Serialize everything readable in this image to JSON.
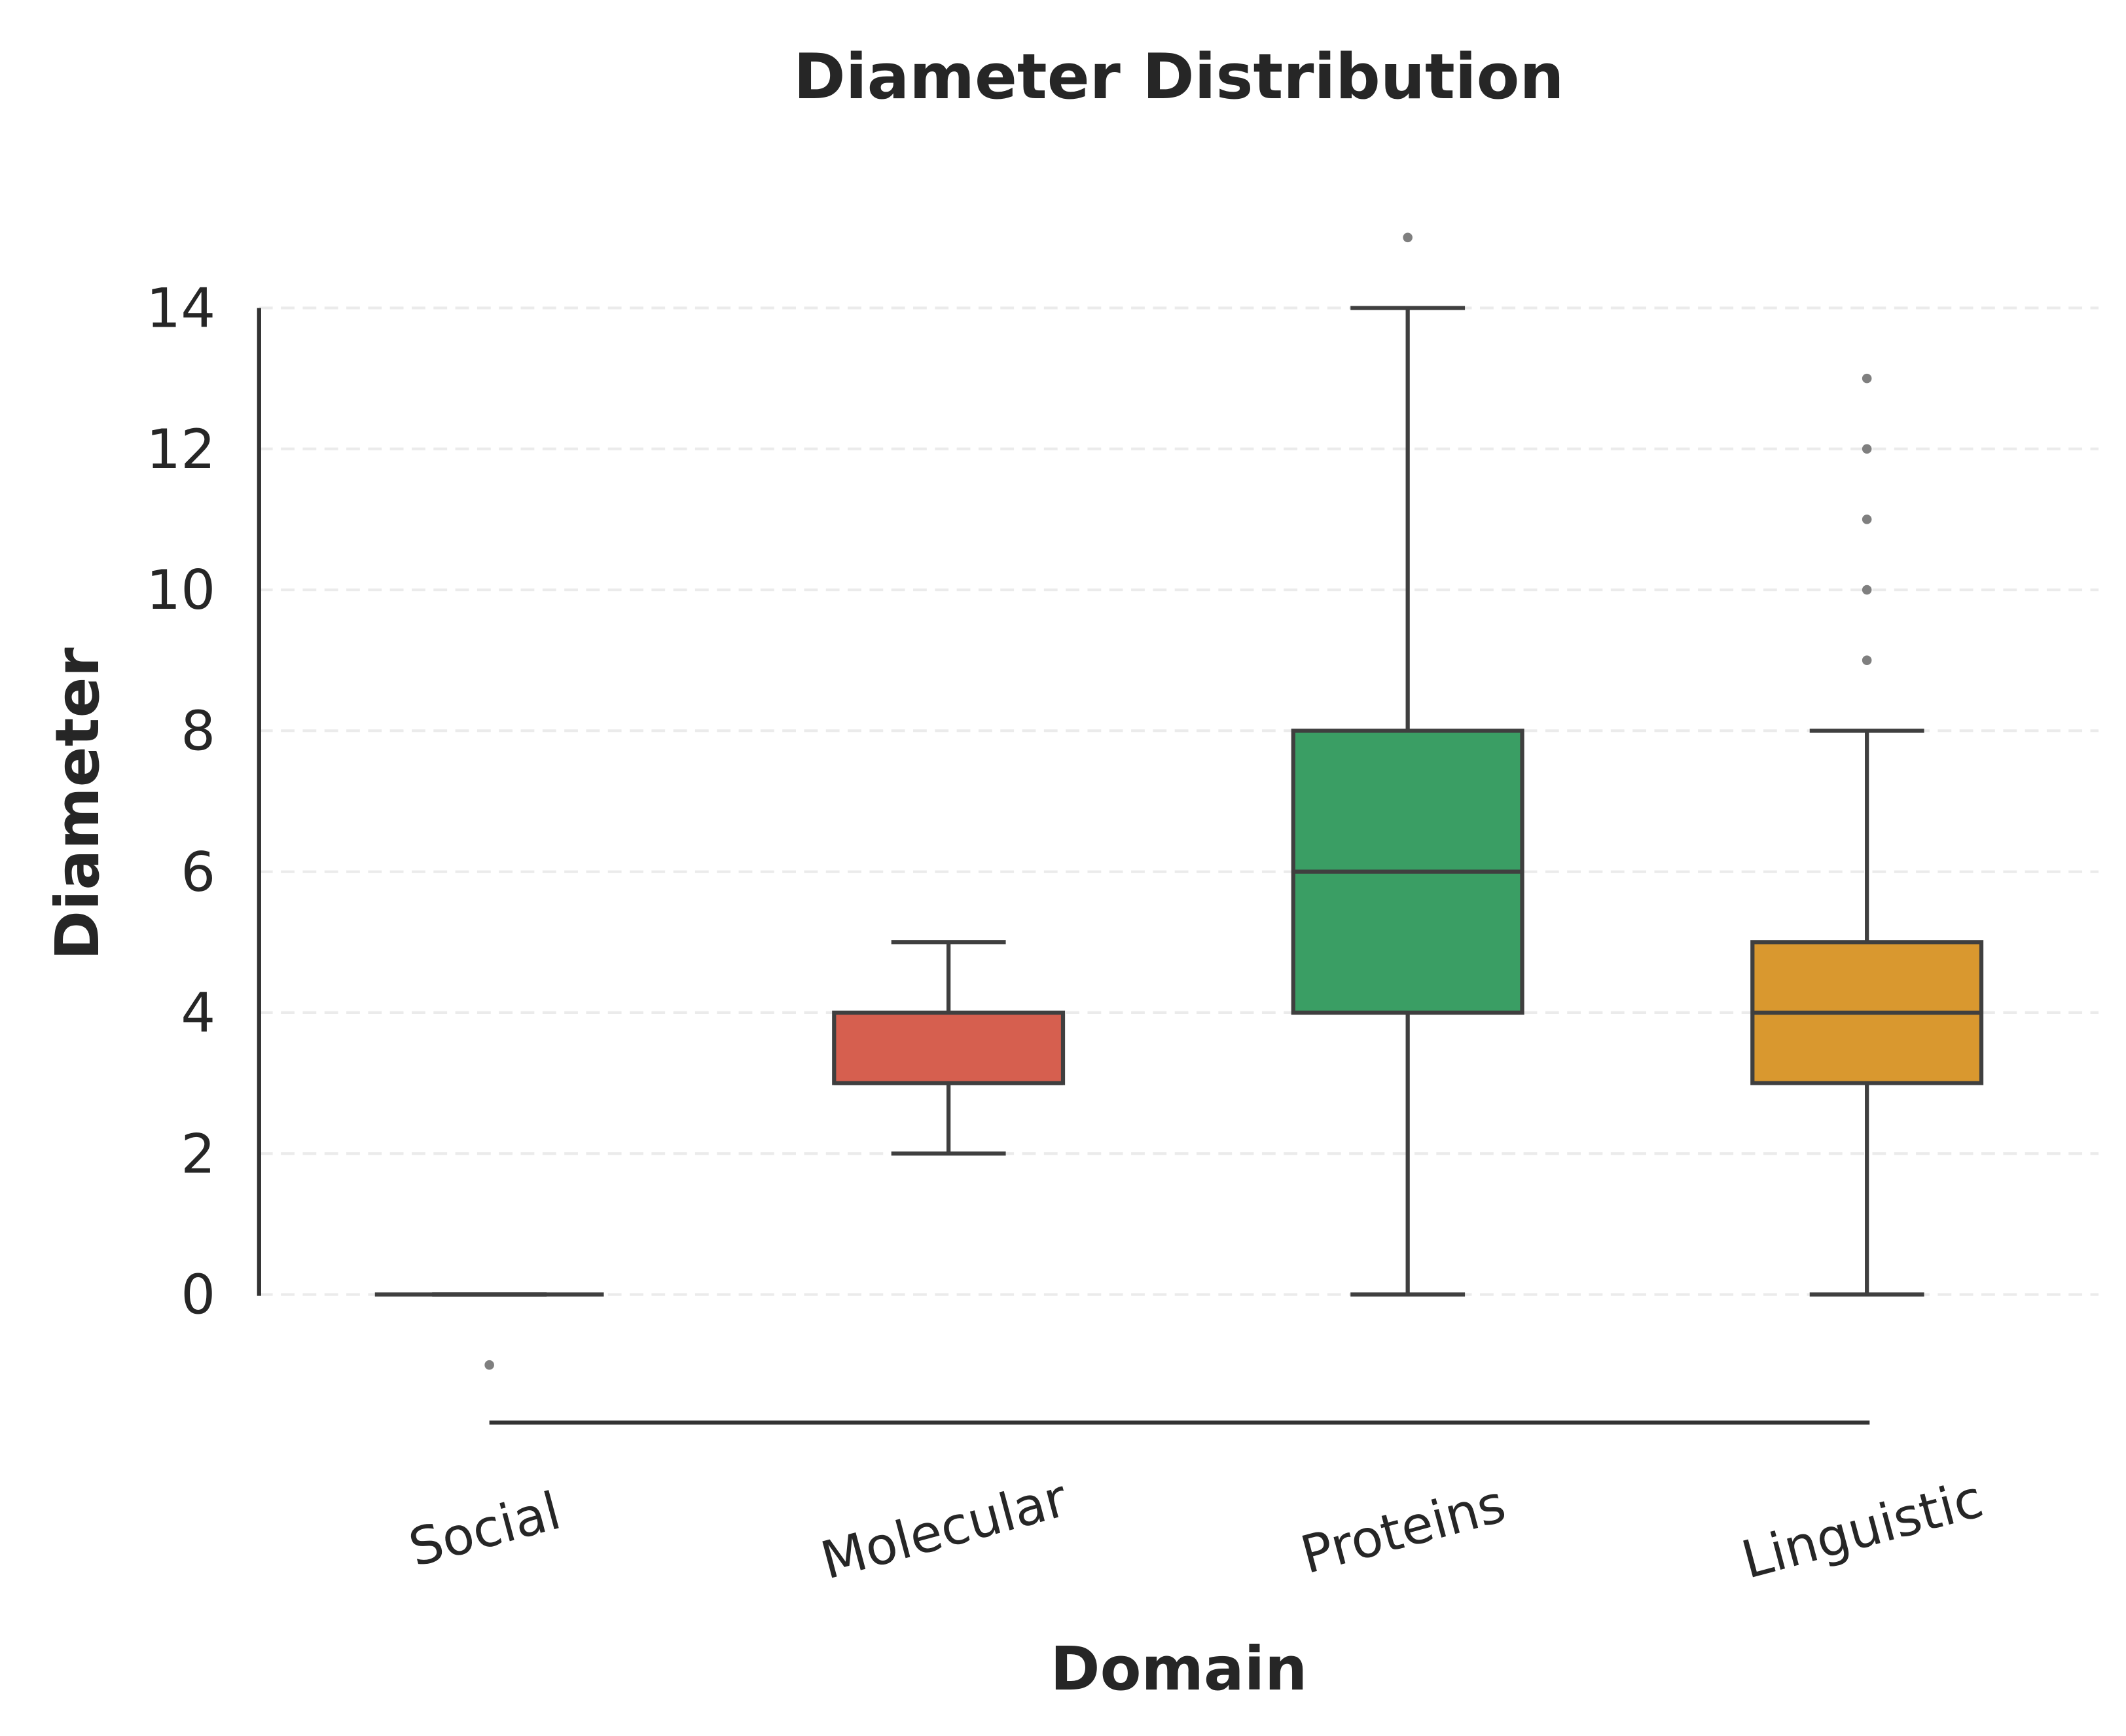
{
  "chart_data": {
    "type": "box",
    "title": "Diameter Distribution",
    "xlabel": "Domain",
    "ylabel": "Diameter",
    "ylim": [
      -1.8,
      15.5
    ],
    "yticks": [
      0,
      2,
      4,
      6,
      8,
      10,
      12,
      14
    ],
    "grid": true,
    "categories": [
      "Social",
      "Molecular",
      "Proteins",
      "Linguistic"
    ],
    "boxes": [
      {
        "name": "Social",
        "min": 0,
        "q1": 0,
        "median": 0,
        "q3": 0,
        "max": 0,
        "outliers": [
          -1
        ],
        "color": "#4c72b0"
      },
      {
        "name": "Molecular",
        "min": 2,
        "q1": 3,
        "median": 3,
        "q3": 4,
        "max": 5,
        "outliers": [],
        "color": "#d65f4f"
      },
      {
        "name": "Proteins",
        "min": 0,
        "q1": 4,
        "median": 6,
        "q3": 8,
        "max": 14,
        "outliers": [
          15
        ],
        "color": "#3a9e64"
      },
      {
        "name": "Linguistic",
        "min": 0,
        "q1": 3,
        "median": 4,
        "q3": 5,
        "max": 8,
        "outliers": [
          9,
          10,
          11,
          12,
          13
        ],
        "color": "#d9982f"
      }
    ]
  }
}
